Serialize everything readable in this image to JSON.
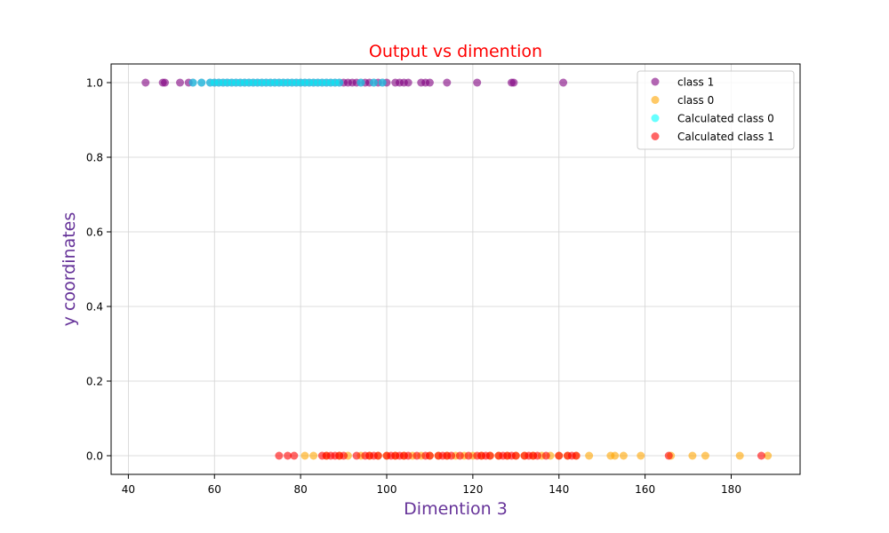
{
  "chart_data": {
    "type": "scatter",
    "title": "Output vs dimention",
    "xlabel": "Dimention 3",
    "ylabel": "y coordinates",
    "xlim": [
      36,
      196
    ],
    "ylim": [
      -0.05,
      1.05
    ],
    "xticks": [
      40,
      60,
      80,
      100,
      120,
      140,
      160,
      180
    ],
    "yticks": [
      0.0,
      0.2,
      0.4,
      0.6,
      0.8,
      1.0
    ],
    "xtick_labels": [
      "40",
      "60",
      "80",
      "100",
      "120",
      "140",
      "160",
      "180"
    ],
    "ytick_labels": [
      "0.0",
      "0.2",
      "0.4",
      "0.6",
      "0.8",
      "1.0"
    ],
    "grid": true,
    "legend_position": "top-right",
    "colors": {
      "title": "#ff0000",
      "axis_label": "#663399",
      "grid": "#d3d3d3"
    },
    "series": [
      {
        "name": "class 1",
        "color": "#800080",
        "alpha": 0.6,
        "y": 1,
        "x": [
          44,
          48,
          48.5,
          52,
          54,
          55,
          57,
          59,
          60,
          61,
          62,
          63,
          64,
          65,
          66,
          67,
          68,
          69,
          70,
          71,
          72,
          73,
          74,
          75,
          76,
          77,
          78,
          79,
          80,
          81,
          82,
          83,
          84,
          85,
          86,
          87,
          88,
          89,
          90,
          91,
          92,
          93,
          94,
          95,
          96,
          97,
          98,
          99,
          100,
          102,
          103,
          104,
          105,
          108,
          109,
          110,
          114,
          121,
          129,
          129.5,
          141
        ]
      },
      {
        "name": "class 0",
        "color": "#ffa500",
        "alpha": 0.6,
        "y": 0,
        "x": [
          81,
          83,
          86,
          89,
          91,
          94,
          96,
          98,
          100,
          102,
          104,
          106,
          108,
          110,
          112,
          114,
          116,
          118,
          120,
          122,
          124,
          126,
          128,
          130,
          132,
          134,
          136,
          138,
          140,
          142,
          144,
          147,
          152,
          153,
          155,
          159,
          166,
          171,
          174,
          182,
          188.5
        ]
      },
      {
        "name": "Calculated class 0",
        "color": "#00ffff",
        "alpha": 0.6,
        "y": 1,
        "x": [
          55,
          57,
          59,
          60,
          61,
          62,
          63,
          64,
          65,
          66,
          67,
          68,
          69,
          70,
          71,
          72,
          73,
          74,
          75,
          76,
          77,
          78,
          79,
          80,
          81,
          82,
          83,
          84,
          85,
          86,
          87,
          88,
          89,
          94,
          97,
          99
        ]
      },
      {
        "name": "Calculated class 1",
        "color": "#ff0000",
        "alpha": 0.6,
        "y": 0,
        "x": [
          75,
          77,
          78.5,
          85,
          86,
          87,
          88,
          89,
          90,
          93,
          95,
          96,
          97,
          98,
          100,
          101,
          102,
          103,
          104,
          105,
          107,
          109,
          110,
          112,
          113,
          114,
          115,
          117,
          119,
          121,
          122,
          123,
          124,
          126,
          127,
          128,
          129,
          130,
          132,
          133,
          134,
          135,
          137,
          140,
          142,
          143,
          144,
          165.5,
          187
        ]
      }
    ]
  }
}
